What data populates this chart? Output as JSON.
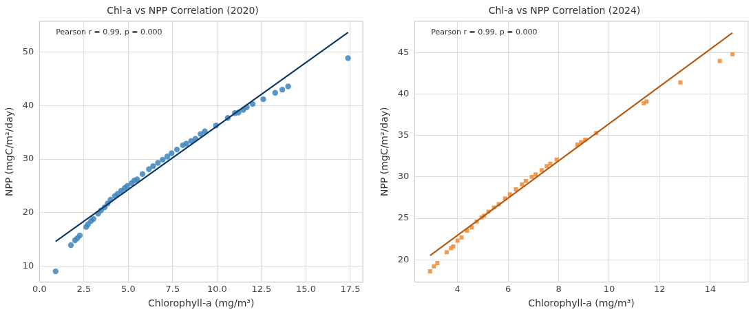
{
  "chart_data": [
    {
      "type": "scatter",
      "title": "Chl-a vs NPP Correlation (2020)",
      "xlabel": "Chlorophyll-a (mg/m³)",
      "ylabel": "NPP (mgC/m²/day)",
      "annotations": [
        "Pearson r = 0.99, p = 0.000"
      ],
      "grid": true,
      "legend": false,
      "xlim": [
        0,
        18.2
      ],
      "ylim": [
        7.0,
        55.8
      ],
      "xticks": [
        {
          "value": 0,
          "label": "0.0"
        },
        2.5,
        {
          "value": 5,
          "label": "5.0"
        },
        7.5,
        {
          "value": 10,
          "label": "10.0"
        },
        12.5,
        {
          "value": 15,
          "label": "15.0"
        },
        17.5
      ],
      "yticks": [
        10,
        20,
        30,
        40,
        50
      ],
      "series": [
        {
          "type": "scatter",
          "marker": "circle",
          "color": "#3f86bc",
          "x": [
            0.91,
            1.77,
            2.0,
            2.13,
            2.27,
            2.63,
            2.73,
            2.9,
            3.04,
            3.3,
            3.47,
            3.67,
            3.84,
            4.0,
            4.24,
            4.4,
            4.6,
            4.8,
            4.94,
            5.18,
            5.34,
            5.5,
            5.8,
            6.16,
            6.4,
            6.67,
            6.94,
            7.2,
            7.44,
            7.74,
            8.07,
            8.27,
            8.54,
            8.78,
            9.07,
            9.31,
            9.94,
            10.6,
            11.0,
            11.2,
            11.47,
            11.67,
            12.0,
            12.6,
            13.27,
            13.67,
            14.0,
            17.37
          ],
          "values": [
            9.0,
            13.9,
            14.8,
            15.2,
            15.7,
            17.3,
            17.8,
            18.4,
            18.8,
            19.8,
            20.4,
            21.0,
            21.7,
            22.4,
            23.1,
            23.5,
            24.1,
            24.6,
            25.0,
            25.5,
            26.0,
            26.2,
            27.2,
            28.1,
            28.7,
            29.3,
            29.9,
            30.5,
            31.1,
            31.8,
            32.6,
            32.9,
            33.4,
            33.8,
            34.7,
            35.2,
            36.3,
            37.7,
            38.6,
            38.7,
            39.2,
            39.7,
            40.3,
            41.2,
            42.4,
            43.0,
            43.6,
            48.9
          ]
        },
        {
          "type": "line",
          "color": "#0d3a66",
          "x": [
            0.91,
            17.37
          ],
          "values": [
            14.6,
            53.7
          ]
        }
      ]
    },
    {
      "type": "scatter",
      "title": "Chl-a vs NPP Correlation (2024)",
      "xlabel": "Chlorophyll-a (mg/m³)",
      "ylabel": "NPP (mgC/m²/day)",
      "annotations": [
        "Pearson r = 0.99, p = 0.000"
      ],
      "grid": true,
      "legend": false,
      "xlim": [
        2.3,
        15.5
      ],
      "ylim": [
        17.3,
        48.8
      ],
      "xticks": [
        4,
        6,
        8,
        10,
        12,
        14
      ],
      "yticks": [
        20,
        25,
        30,
        35,
        40,
        45
      ],
      "series": [
        {
          "type": "scatter",
          "marker": "square",
          "color": "#f28a30",
          "x": [
            2.91,
            3.06,
            3.2,
            3.57,
            3.74,
            3.83,
            4.0,
            4.16,
            4.37,
            4.56,
            4.76,
            4.95,
            5.05,
            5.22,
            5.44,
            5.63,
            5.88,
            6.07,
            6.31,
            6.55,
            6.7,
            6.94,
            7.09,
            7.33,
            7.53,
            7.67,
            7.92,
            8.74,
            8.89,
            9.05,
            9.49,
            11.37,
            11.48,
            12.82,
            14.38,
            14.88
          ],
          "values": [
            18.6,
            19.2,
            19.6,
            20.9,
            21.4,
            21.6,
            22.3,
            22.7,
            23.5,
            23.9,
            24.6,
            25.1,
            25.3,
            25.8,
            26.3,
            26.7,
            27.4,
            27.9,
            28.5,
            29.1,
            29.5,
            30.0,
            30.3,
            30.8,
            31.3,
            31.6,
            32.1,
            33.9,
            34.2,
            34.5,
            35.3,
            38.9,
            39.1,
            41.4,
            44.0,
            44.8
          ]
        },
        {
          "type": "line",
          "color": "#b55a10",
          "x": [
            2.91,
            14.88
          ],
          "values": [
            20.5,
            47.4
          ]
        }
      ]
    }
  ]
}
